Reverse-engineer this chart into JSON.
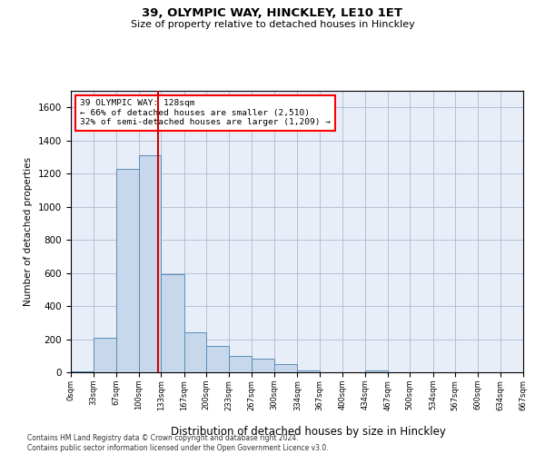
{
  "title1": "39, OLYMPIC WAY, HINCKLEY, LE10 1ET",
  "title2": "Size of property relative to detached houses in Hinckley",
  "xlabel": "Distribution of detached houses by size in Hinckley",
  "ylabel": "Number of detached properties",
  "property_size": 128,
  "annotation_line1": "39 OLYMPIC WAY: 128sqm",
  "annotation_line2": "← 66% of detached houses are smaller (2,510)",
  "annotation_line3": "32% of semi-detached houses are larger (1,209) →",
  "bar_color": "#c8d8ec",
  "bar_edgecolor": "#5b8db8",
  "vline_color": "#cc0000",
  "grid_color": "#b0b8d0",
  "bg_color": "#e8eef8",
  "footer": "Contains HM Land Registry data © Crown copyright and database right 2024.\nContains public sector information licensed under the Open Government Licence v3.0.",
  "bin_edges": [
    0,
    33,
    67,
    100,
    133,
    167,
    200,
    233,
    267,
    300,
    334,
    367,
    400,
    434,
    467,
    500,
    534,
    567,
    600,
    634,
    667
  ],
  "bar_heights": [
    5,
    210,
    1230,
    1310,
    590,
    240,
    160,
    100,
    80,
    50,
    10,
    0,
    0,
    10,
    0,
    0,
    0,
    0,
    0,
    0
  ],
  "ylim": [
    0,
    1700
  ],
  "yticks": [
    0,
    200,
    400,
    600,
    800,
    1000,
    1200,
    1400,
    1600
  ]
}
